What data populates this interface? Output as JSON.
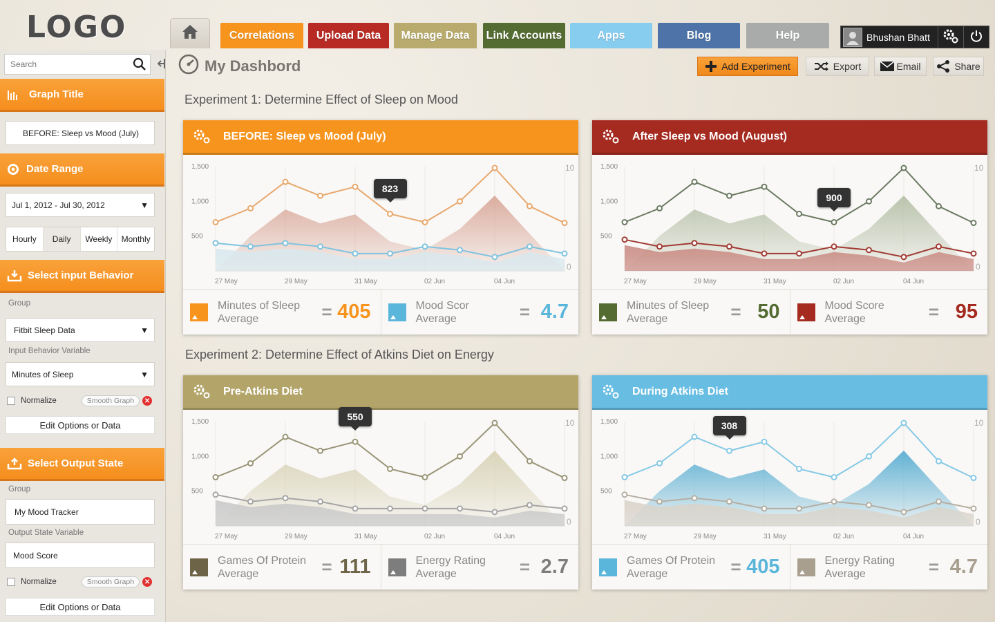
{
  "app": {
    "logo": "LOGO"
  },
  "nav": {
    "home_icon": "home-icon",
    "tabs": [
      {
        "label": "Correlations",
        "color": "#f7941d"
      },
      {
        "label": "Upload Data",
        "color": "#b82a24"
      },
      {
        "label": "Manage Data",
        "color": "#b9ab6d"
      },
      {
        "label": "Link Accounts",
        "color": "#546b32"
      },
      {
        "label": "Apps",
        "color": "#86cdef"
      },
      {
        "label": "Blog",
        "color": "#4d73a8"
      },
      {
        "label": "Help",
        "color": "#a9abab"
      }
    ],
    "user": {
      "name": "Bhushan Bhatt"
    }
  },
  "sidebar": {
    "search_placeholder": "Search",
    "graph_title": {
      "heading": "Graph Title",
      "value": "BEFORE: Sleep vs Mood (July)"
    },
    "date_range": {
      "heading": "Date Range",
      "value": "Jul 1, 2012 - Jul 30, 2012",
      "tabs": [
        "Hourly",
        "Daily",
        "Weekly",
        "Monthly"
      ],
      "active_tab": "Daily"
    },
    "input": {
      "heading": "Select input  Behavior",
      "group_label": "Group",
      "group_value": "Fitbit Sleep Data",
      "variable_label": "Input Behavior Variable",
      "variable_value": "Minutes of Sleep",
      "normalize": "Normalize",
      "smooth": "Smooth Graph",
      "edit": "Edit Options or Data"
    },
    "output": {
      "heading": "Select Output State",
      "group_label": "Group",
      "group_value": "My Mood Tracker",
      "variable_label": "Output State Variable",
      "variable_value": "Mood Score",
      "normalize": "Normalize",
      "smooth": "Smooth Graph",
      "edit": "Edit Options or Data"
    }
  },
  "header": {
    "title": "My Dashbord",
    "actions": {
      "add": "Add Experiment",
      "export": "Export",
      "email": "Email",
      "share": "Share"
    }
  },
  "experiments": [
    {
      "title": "Experiment 1:  Determine Effect of Sleep on Mood"
    },
    {
      "title": "Experiment 2:  Determine Effect of Atkins Diet on Energy"
    }
  ],
  "chart_data": [
    {
      "type": "line",
      "title": "BEFORE: Sleep vs Mood (July)",
      "header_color": "#f7941d",
      "x": [
        "27 May",
        "28 May",
        "29 May",
        "30 May",
        "31 May",
        "01 Jun",
        "02 Jun",
        "03 Jun",
        "04 Jun",
        "05 Jun",
        "06 Jun"
      ],
      "x_ticks": [
        "27 May",
        "29 May",
        "31 May",
        "02 Jun",
        "04 Jun"
      ],
      "y_ticks": [
        "1,500",
        "1,000",
        "500"
      ],
      "ylim": [
        0,
        1500
      ],
      "y2_ticks": [
        "10",
        "0"
      ],
      "series": [
        {
          "values": [
            700,
            900,
            1280,
            1080,
            1210,
            820,
            700,
            1000,
            1480,
            930,
            690
          ],
          "color": "#e7a86e",
          "fill": "#d9a89a"
        },
        {
          "values": [
            400,
            350,
            400,
            350,
            250,
            250,
            350,
            300,
            200,
            350,
            250
          ],
          "color": "#7fc3e0",
          "fill": "#d8e8ee"
        }
      ],
      "tooltip": {
        "label": "823",
        "index": 5
      },
      "stats": [
        {
          "label1": "Minutes of Sleep",
          "label2": "Average",
          "value": "405",
          "color": "#f7941d"
        },
        {
          "label1": "Mood Scor",
          "label2": "Average",
          "value": "4.7",
          "color": "#5bb6db"
        }
      ]
    },
    {
      "type": "line",
      "title": "After Sleep vs Mood (August)",
      "header_color": "#a52a20",
      "x": [
        "27 May",
        "28 May",
        "29 May",
        "30 May",
        "31 May",
        "01 Jun",
        "02 Jun",
        "03 Jun",
        "04 Jun",
        "05 Jun",
        "06 Jun"
      ],
      "x_ticks": [
        "27 May",
        "29 May",
        "31 May",
        "02 Jun",
        "04 Jun"
      ],
      "y_ticks": [
        "1,500",
        "1,000",
        "500"
      ],
      "ylim": [
        0,
        1500
      ],
      "y2_ticks": [
        "10",
        "0"
      ],
      "series": [
        {
          "values": [
            700,
            900,
            1280,
            1080,
            1210,
            820,
            700,
            1000,
            1480,
            930,
            690
          ],
          "color": "#6b7a62",
          "fill": "#b7c0a8"
        },
        {
          "values": [
            450,
            350,
            400,
            350,
            250,
            250,
            350,
            300,
            200,
            350,
            250
          ],
          "color": "#a03a32",
          "fill": "#c98a82"
        }
      ],
      "tooltip": {
        "label": "900",
        "index": 6
      },
      "stats": [
        {
          "label1": "Minutes of Sleep",
          "label2": "Average",
          "value": "50",
          "color": "#546b32"
        },
        {
          "label1": "Mood Score",
          "label2": "Average",
          "value": "95",
          "color": "#a52a20"
        }
      ]
    },
    {
      "type": "line",
      "title": "Pre-Atkins Diet",
      "header_color": "#b3a56a",
      "x": [
        "27 May",
        "28 May",
        "29 May",
        "30 May",
        "31 May",
        "01 Jun",
        "02 Jun",
        "03 Jun",
        "04 Jun",
        "05 Jun",
        "06 Jun"
      ],
      "x_ticks": [
        "27 May",
        "29 May",
        "31 May",
        "02 Jun",
        "04 Jun"
      ],
      "y_ticks": [
        "1,500",
        "1,000",
        "500"
      ],
      "ylim": [
        0,
        1500
      ],
      "y2_ticks": [
        "10",
        "0"
      ],
      "series": [
        {
          "values": [
            700,
            900,
            1280,
            1080,
            1210,
            820,
            700,
            1000,
            1480,
            930,
            690
          ],
          "color": "#9a9577",
          "fill": "#d8d2b6"
        },
        {
          "values": [
            450,
            350,
            400,
            350,
            250,
            250,
            250,
            250,
            200,
            300,
            250
          ],
          "color": "#a5a5a5",
          "fill": "#c9c9c9"
        }
      ],
      "tooltip": {
        "label": "550",
        "index": 4
      },
      "stats": [
        {
          "label1": "Games Of Protein",
          "label2": "Average",
          "value": "111",
          "color": "#6d6346"
        },
        {
          "label1": "Energy Rating",
          "label2": "Average",
          "value": "2.7",
          "color": "#7d7d7d"
        }
      ]
    },
    {
      "type": "line",
      "title": "During Atkins Diet",
      "header_color": "#68bde3",
      "x": [
        "27 May",
        "28 May",
        "29 May",
        "30 May",
        "31 May",
        "01 Jun",
        "02 Jun",
        "03 Jun",
        "04 Jun",
        "05 Jun",
        "06 Jun"
      ],
      "x_ticks": [
        "27 May",
        "29 May",
        "31 May",
        "02 Jun",
        "04 Jun"
      ],
      "y_ticks": [
        "1,500",
        "1,000",
        "500"
      ],
      "ylim": [
        0,
        1500
      ],
      "y2_ticks": [
        "10",
        "0"
      ],
      "series": [
        {
          "values": [
            700,
            900,
            1280,
            1080,
            1210,
            820,
            700,
            1000,
            1480,
            930,
            690
          ],
          "color": "#86c9e6",
          "fill": "#5aaed2"
        },
        {
          "values": [
            450,
            350,
            400,
            350,
            250,
            250,
            350,
            300,
            200,
            350,
            250
          ],
          "color": "#b5aea2",
          "fill": "#d9d3c9"
        }
      ],
      "tooltip": {
        "label": "308",
        "index": 3
      },
      "stats": [
        {
          "label1": "Games Of Protein",
          "label2": "Average",
          "value": "405",
          "color": "#5bb6db"
        },
        {
          "label1": "Energy Rating",
          "label2": "Average",
          "value": "4.7",
          "color": "#a89f8f"
        }
      ]
    }
  ]
}
